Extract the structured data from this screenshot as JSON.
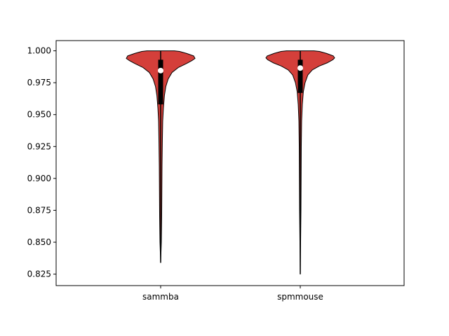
{
  "chart_data": {
    "type": "violin",
    "categories": [
      "sammba",
      "spmmouse"
    ],
    "ylim": [
      0.816,
      1.008
    ],
    "yticks": [
      0.825,
      0.85,
      0.875,
      0.9,
      0.925,
      0.95,
      0.975,
      1.0
    ],
    "ytick_labels": [
      "0.825",
      "0.850",
      "0.875",
      "0.900",
      "0.925",
      "0.950",
      "0.975",
      "1.000"
    ],
    "grid": false,
    "colors": {
      "fill": "#d43f3a",
      "edge": "#000000",
      "box": "#000000",
      "median": "#ffffff"
    },
    "series": [
      {
        "min": 0.834,
        "q1": 0.958,
        "median": 0.9845,
        "q3": 0.993,
        "max": 1.0,
        "density": [
          [
            0.834,
            0.0
          ],
          [
            0.85,
            0.02
          ],
          [
            0.87,
            0.03
          ],
          [
            0.89,
            0.035
          ],
          [
            0.91,
            0.04
          ],
          [
            0.93,
            0.05
          ],
          [
            0.945,
            0.06
          ],
          [
            0.955,
            0.08
          ],
          [
            0.965,
            0.11
          ],
          [
            0.972,
            0.15
          ],
          [
            0.978,
            0.22
          ],
          [
            0.983,
            0.33
          ],
          [
            0.987,
            0.52
          ],
          [
            0.99,
            0.75
          ],
          [
            0.9925,
            0.92
          ],
          [
            0.994,
            1.0
          ],
          [
            0.996,
            0.96
          ],
          [
            0.998,
            0.75
          ],
          [
            0.9995,
            0.55
          ],
          [
            1.0,
            0.4
          ]
        ]
      },
      {
        "min": 0.825,
        "q1": 0.967,
        "median": 0.9865,
        "q3": 0.993,
        "max": 1.0,
        "density": [
          [
            0.825,
            0.0
          ],
          [
            0.85,
            0.01
          ],
          [
            0.875,
            0.02
          ],
          [
            0.9,
            0.025
          ],
          [
            0.925,
            0.03
          ],
          [
            0.945,
            0.04
          ],
          [
            0.958,
            0.06
          ],
          [
            0.968,
            0.09
          ],
          [
            0.975,
            0.14
          ],
          [
            0.981,
            0.22
          ],
          [
            0.985,
            0.35
          ],
          [
            0.988,
            0.55
          ],
          [
            0.9905,
            0.78
          ],
          [
            0.993,
            0.95
          ],
          [
            0.9945,
            1.0
          ],
          [
            0.996,
            0.96
          ],
          [
            0.998,
            0.76
          ],
          [
            0.9995,
            0.56
          ],
          [
            1.0,
            0.4
          ]
        ]
      }
    ]
  }
}
